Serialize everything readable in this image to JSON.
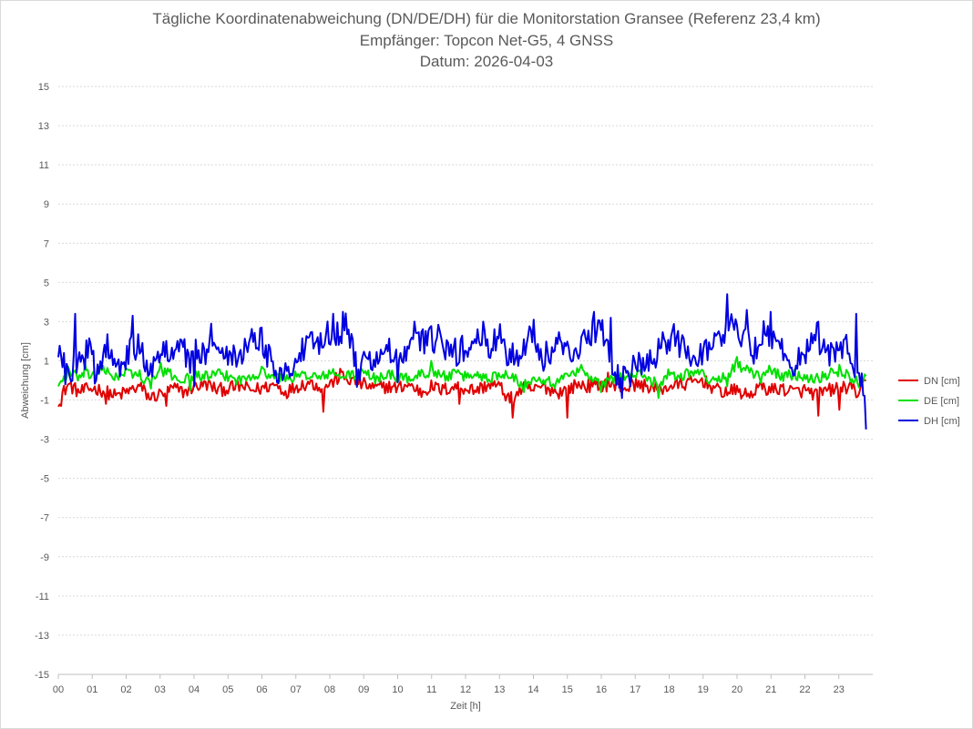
{
  "chart_data": {
    "type": "line",
    "title": [
      "Tägliche Koordinatenabweichung (DN/DE/DH) für die Monitorstation Gransee (Referenz 23,4 km)",
      "Empfänger: Topcon Net-G5, 4 GNSS",
      "Datum: 2026-04-03"
    ],
    "xlabel": "Zeit [h]",
    "ylabel": "Abweichung [cm]",
    "x_tick_labels": [
      "00",
      "01",
      "02",
      "03",
      "04",
      "05",
      "06",
      "07",
      "08",
      "09",
      "10",
      "11",
      "12",
      "13",
      "14",
      "15",
      "16",
      "17",
      "18",
      "19",
      "20",
      "21",
      "22",
      "23"
    ],
    "y_tick_labels": [
      "15",
      "13",
      "11",
      "9",
      "7",
      "5",
      "3",
      "1",
      "-1",
      "-3",
      "-5",
      "-7",
      "-9",
      "-11",
      "-13",
      "-15"
    ],
    "xlim": [
      0,
      24
    ],
    "ylim": [
      -15,
      15
    ],
    "grid": true,
    "legend_position": "right",
    "series": [
      {
        "name": "DN [cm]",
        "color": "#e00000",
        "control_points": [
          [
            0,
            -1.0
          ],
          [
            0.3,
            -0.2
          ],
          [
            0.6,
            -0.6
          ],
          [
            1.0,
            -0.4
          ],
          [
            1.3,
            -0.5
          ],
          [
            1.7,
            -0.8
          ],
          [
            2.0,
            -0.6
          ],
          [
            2.4,
            -0.3
          ],
          [
            2.7,
            -0.9
          ],
          [
            3.0,
            -0.7
          ],
          [
            3.4,
            -0.4
          ],
          [
            3.7,
            -0.6
          ],
          [
            4.0,
            -0.3
          ],
          [
            4.4,
            -0.2
          ],
          [
            4.7,
            -0.5
          ],
          [
            5.0,
            -0.4
          ],
          [
            5.4,
            -0.3
          ],
          [
            5.7,
            -0.5
          ],
          [
            6.0,
            -0.4
          ],
          [
            6.4,
            -0.2
          ],
          [
            6.7,
            -0.6
          ],
          [
            7.0,
            -0.3
          ],
          [
            7.4,
            -0.1
          ],
          [
            7.7,
            -0.3
          ],
          [
            8.0,
            -0.2
          ],
          [
            8.3,
            0.2
          ],
          [
            8.6,
            0.0
          ],
          [
            9.0,
            -0.2
          ],
          [
            9.3,
            -0.4
          ],
          [
            9.7,
            -0.3
          ],
          [
            10.0,
            -0.4
          ],
          [
            10.3,
            -0.2
          ],
          [
            10.7,
            -0.6
          ],
          [
            11.0,
            -0.3
          ],
          [
            11.3,
            -0.5
          ],
          [
            11.7,
            -0.3
          ],
          [
            12.0,
            -0.4
          ],
          [
            12.3,
            -0.5
          ],
          [
            12.7,
            -0.2
          ],
          [
            13.0,
            -0.3
          ],
          [
            13.3,
            -1.0
          ],
          [
            13.7,
            -0.4
          ],
          [
            14.0,
            -0.5
          ],
          [
            14.3,
            -0.3
          ],
          [
            14.7,
            -0.6
          ],
          [
            15.0,
            -0.5
          ],
          [
            15.3,
            -0.2
          ],
          [
            15.7,
            -0.3
          ],
          [
            16.0,
            -0.2
          ],
          [
            16.4,
            -0.3
          ],
          [
            16.7,
            -0.4
          ],
          [
            17.0,
            -0.2
          ],
          [
            17.4,
            -0.3
          ],
          [
            17.7,
            -0.5
          ],
          [
            18.0,
            -0.3
          ],
          [
            18.4,
            -0.2
          ],
          [
            18.7,
            -0.1
          ],
          [
            19.0,
            0.0
          ],
          [
            19.4,
            -0.5
          ],
          [
            19.7,
            -0.6
          ],
          [
            20.0,
            -0.5
          ],
          [
            20.3,
            -0.8
          ],
          [
            20.7,
            -0.3
          ],
          [
            21.0,
            -0.5
          ],
          [
            21.3,
            -0.4
          ],
          [
            21.7,
            -0.6
          ],
          [
            22.0,
            -0.5
          ],
          [
            22.3,
            -0.7
          ],
          [
            22.7,
            -0.5
          ],
          [
            23.0,
            -0.4
          ],
          [
            23.3,
            -0.3
          ],
          [
            23.6,
            -0.7
          ],
          [
            23.8,
            -0.1
          ]
        ],
        "extremes": [
          [
            0.1,
            -1.3
          ],
          [
            1.4,
            -1.2
          ],
          [
            3.2,
            -1.3
          ],
          [
            7.8,
            -1.6
          ],
          [
            11.8,
            -1.2
          ],
          [
            13.4,
            -1.9
          ],
          [
            15.0,
            -1.9
          ],
          [
            22.4,
            -1.8
          ],
          [
            23.0,
            -1.5
          ],
          [
            8.3,
            0.6
          ],
          [
            16.2,
            0.4
          ]
        ]
      },
      {
        "name": "DE [cm]",
        "color": "#00e000",
        "control_points": [
          [
            0,
            -0.2
          ],
          [
            0.3,
            0.3
          ],
          [
            0.6,
            0.2
          ],
          [
            1.0,
            0.3
          ],
          [
            1.3,
            0.5
          ],
          [
            1.7,
            0.2
          ],
          [
            2.0,
            0.4
          ],
          [
            2.4,
            0.3
          ],
          [
            2.7,
            -0.2
          ],
          [
            3.0,
            0.5
          ],
          [
            3.3,
            0.3
          ],
          [
            3.7,
            0.0
          ],
          [
            4.0,
            0.3
          ],
          [
            4.4,
            0.2
          ],
          [
            4.7,
            0.3
          ],
          [
            5.0,
            0.2
          ],
          [
            5.4,
            0.0
          ],
          [
            5.7,
            0.3
          ],
          [
            6.0,
            0.4
          ],
          [
            6.4,
            0.2
          ],
          [
            6.7,
            0.1
          ],
          [
            7.0,
            0.2
          ],
          [
            7.4,
            0.3
          ],
          [
            7.7,
            0.1
          ],
          [
            8.0,
            0.4
          ],
          [
            8.3,
            0.2
          ],
          [
            8.7,
            0.3
          ],
          [
            9.0,
            0.4
          ],
          [
            9.3,
            0.1
          ],
          [
            9.7,
            0.3
          ],
          [
            10.0,
            0.2
          ],
          [
            10.3,
            0.1
          ],
          [
            10.7,
            0.3
          ],
          [
            11.0,
            0.5
          ],
          [
            11.3,
            0.2
          ],
          [
            11.7,
            0.3
          ],
          [
            12.0,
            0.2
          ],
          [
            12.3,
            0.3
          ],
          [
            12.7,
            0.1
          ],
          [
            13.0,
            0.3
          ],
          [
            13.3,
            0.4
          ],
          [
            13.7,
            -0.3
          ],
          [
            14.0,
            0.2
          ],
          [
            14.3,
            0.1
          ],
          [
            14.7,
            -0.2
          ],
          [
            15.0,
            0.4
          ],
          [
            15.3,
            0.5
          ],
          [
            15.7,
            0.2
          ],
          [
            16.0,
            -0.3
          ],
          [
            16.3,
            0.1
          ],
          [
            16.7,
            0.2
          ],
          [
            17.0,
            0.3
          ],
          [
            17.3,
            0.2
          ],
          [
            17.7,
            -0.2
          ],
          [
            18.0,
            0.4
          ],
          [
            18.3,
            0.2
          ],
          [
            18.7,
            0.5
          ],
          [
            19.0,
            0.3
          ],
          [
            19.3,
            -0.1
          ],
          [
            19.7,
            0.3
          ],
          [
            20.0,
            0.8
          ],
          [
            20.3,
            0.5
          ],
          [
            20.7,
            0.1
          ],
          [
            21.0,
            0.6
          ],
          [
            21.3,
            0.2
          ],
          [
            21.7,
            0.3
          ],
          [
            22.0,
            0.2
          ],
          [
            22.3,
            0.1
          ],
          [
            22.7,
            0.3
          ],
          [
            23.0,
            0.5
          ],
          [
            23.3,
            0.2
          ],
          [
            23.6,
            -0.1
          ],
          [
            23.8,
            0.4
          ]
        ],
        "extremes": [
          [
            0.3,
            0.7
          ],
          [
            0.8,
            0.9
          ],
          [
            3.0,
            0.9
          ],
          [
            3.9,
            -0.5
          ],
          [
            6.0,
            0.7
          ],
          [
            11.0,
            1.0
          ],
          [
            13.7,
            -0.6
          ],
          [
            15.4,
            0.8
          ],
          [
            16.0,
            -0.6
          ],
          [
            17.7,
            -0.9
          ],
          [
            19.7,
            -0.3
          ],
          [
            20.0,
            1.2
          ],
          [
            23.0,
            0.8
          ]
        ]
      },
      {
        "name": "DH [cm]",
        "color": "#0000e0",
        "control_points": [
          [
            0,
            1.0
          ],
          [
            0.2,
            1.3
          ],
          [
            0.4,
            0.5
          ],
          [
            0.6,
            1.0
          ],
          [
            0.9,
            1.5
          ],
          [
            1.1,
            0.4
          ],
          [
            1.4,
            1.8
          ],
          [
            1.7,
            1.4
          ],
          [
            1.9,
            0.3
          ],
          [
            2.1,
            1.5
          ],
          [
            2.4,
            1.7
          ],
          [
            2.7,
            0.6
          ],
          [
            3.0,
            1.1
          ],
          [
            3.3,
            1.7
          ],
          [
            3.6,
            2.0
          ],
          [
            3.9,
            0.8
          ],
          [
            4.1,
            1.6
          ],
          [
            4.4,
            1.2
          ],
          [
            4.7,
            2.0
          ],
          [
            5.0,
            1.5
          ],
          [
            5.3,
            1.3
          ],
          [
            5.6,
            1.9
          ],
          [
            5.9,
            2.3
          ],
          [
            6.1,
            1.5
          ],
          [
            6.4,
            0.7
          ],
          [
            6.7,
            0.3
          ],
          [
            7.0,
            1.0
          ],
          [
            7.3,
            1.7
          ],
          [
            7.6,
            1.8
          ],
          [
            7.9,
            2.5
          ],
          [
            8.2,
            2.4
          ],
          [
            8.5,
            2.9
          ],
          [
            8.8,
            0.4
          ],
          [
            9.1,
            1.0
          ],
          [
            9.4,
            1.2
          ],
          [
            9.7,
            1.5
          ],
          [
            10.0,
            1.0
          ],
          [
            10.3,
            1.2
          ],
          [
            10.6,
            2.2
          ],
          [
            10.9,
            2.0
          ],
          [
            11.2,
            2.2
          ],
          [
            11.5,
            1.3
          ],
          [
            11.8,
            1.5
          ],
          [
            12.1,
            1.7
          ],
          [
            12.4,
            2.1
          ],
          [
            12.7,
            1.6
          ],
          [
            13.0,
            2.2
          ],
          [
            13.3,
            1.2
          ],
          [
            13.6,
            1.5
          ],
          [
            13.9,
            2.5
          ],
          [
            14.2,
            1.0
          ],
          [
            14.5,
            1.4
          ],
          [
            14.8,
            1.9
          ],
          [
            15.1,
            1.6
          ],
          [
            15.4,
            1.8
          ],
          [
            15.7,
            2.4
          ],
          [
            16.0,
            3.0
          ],
          [
            16.3,
            0.6
          ],
          [
            16.6,
            0.0
          ],
          [
            16.9,
            0.5
          ],
          [
            17.2,
            0.8
          ],
          [
            17.5,
            0.9
          ],
          [
            17.8,
            1.7
          ],
          [
            18.1,
            2.2
          ],
          [
            18.4,
            1.8
          ],
          [
            18.7,
            1.3
          ],
          [
            19.0,
            1.4
          ],
          [
            19.3,
            2.0
          ],
          [
            19.6,
            2.2
          ],
          [
            19.9,
            3.0
          ],
          [
            20.2,
            2.2
          ],
          [
            20.5,
            1.5
          ],
          [
            20.8,
            2.6
          ],
          [
            21.1,
            2.0
          ],
          [
            21.4,
            1.3
          ],
          [
            21.7,
            0.8
          ],
          [
            22.0,
            1.5
          ],
          [
            22.3,
            2.4
          ],
          [
            22.6,
            1.3
          ],
          [
            22.9,
            1.2
          ],
          [
            23.2,
            1.8
          ],
          [
            23.4,
            1.0
          ],
          [
            23.6,
            0.3
          ],
          [
            23.8,
            -0.5
          ]
        ],
        "extremes": [
          [
            0.5,
            3.4
          ],
          [
            0.2,
            -0.2
          ],
          [
            2.2,
            3.3
          ],
          [
            4.0,
            -0.3
          ],
          [
            4.5,
            2.9
          ],
          [
            6.0,
            2.7
          ],
          [
            8.1,
            3.4
          ],
          [
            8.4,
            3.5
          ],
          [
            8.9,
            0.0
          ],
          [
            10.5,
            3.0
          ],
          [
            10.0,
            -0.1
          ],
          [
            12.5,
            3.0
          ],
          [
            14.0,
            3.1
          ],
          [
            15.8,
            3.5
          ],
          [
            16.3,
            3.2
          ],
          [
            16.6,
            -0.9
          ],
          [
            19.7,
            4.4
          ],
          [
            20.3,
            3.6
          ],
          [
            21.0,
            3.5
          ],
          [
            22.4,
            3.0
          ],
          [
            23.5,
            3.4
          ],
          [
            23.8,
            -2.5
          ]
        ]
      }
    ]
  }
}
